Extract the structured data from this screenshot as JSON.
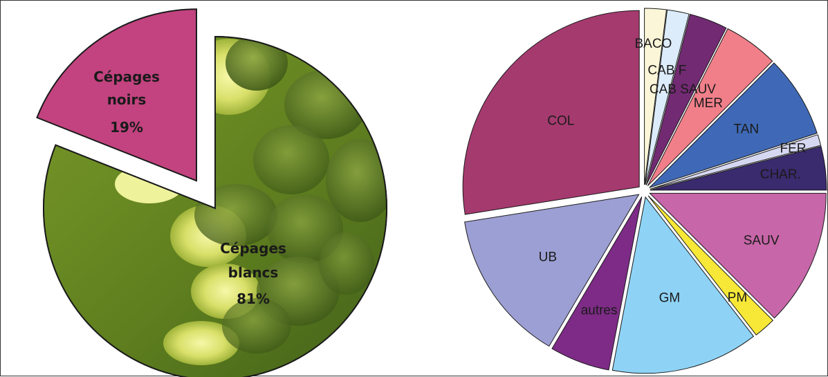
{
  "chart_data": [
    {
      "type": "pie",
      "title": "",
      "fill_style": "grape-photo texture on main slice",
      "slices": [
        {
          "label_lines": [
            "Cépages",
            "noirs",
            "19%"
          ],
          "value": 19,
          "color": "#c2437f",
          "exploded": true
        },
        {
          "label_lines": [
            "Cépages",
            "blancs",
            "81%"
          ],
          "value": 81,
          "color": "#6b8f1e",
          "exploded": false
        }
      ]
    },
    {
      "type": "pie",
      "title": "",
      "slices": [
        {
          "label": "BACO",
          "value": 2.0,
          "color": "#fbf6d8"
        },
        {
          "label": "CAB F",
          "value": 2.0,
          "color": "#dcecfb"
        },
        {
          "label": "CAB SAUV",
          "value": 3.5,
          "color": "#722a72"
        },
        {
          "label": "MER",
          "value": 5.0,
          "color": "#f07f8a"
        },
        {
          "label": "TAN",
          "value": 7.5,
          "color": "#3f69b6"
        },
        {
          "label": "FER",
          "value": 1.0,
          "color": "#d6d8f2"
        },
        {
          "label": "CHAR.",
          "value": 4.0,
          "color": "#3a2a6e"
        },
        {
          "label": "SAUV",
          "value": 12.5,
          "color": "#c766a8"
        },
        {
          "label": "PM",
          "value": 2.0,
          "color": "#f7e838"
        },
        {
          "label": "GM",
          "value": 13.5,
          "color": "#8ed3f5"
        },
        {
          "label": "autres",
          "value": 5.5,
          "color": "#7d2b86"
        },
        {
          "label": "UB",
          "value": 14.0,
          "color": "#9c9fd3"
        },
        {
          "label": "COL",
          "value": 27.5,
          "color": "#a53a6f"
        }
      ]
    }
  ]
}
